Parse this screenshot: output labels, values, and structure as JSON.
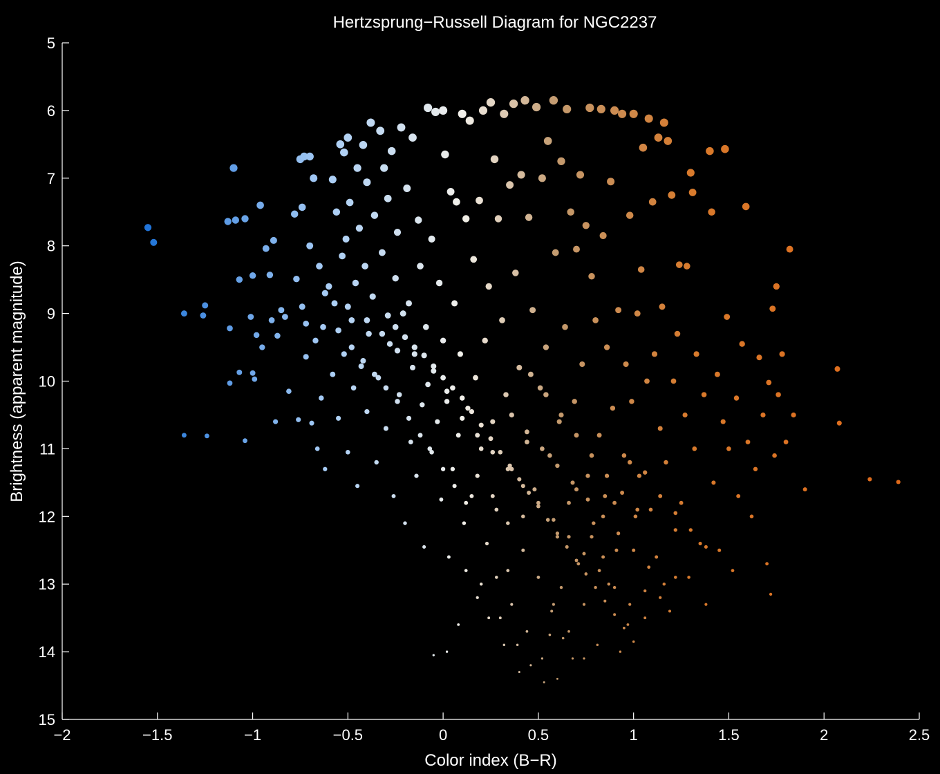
{
  "chart_data": {
    "type": "scatter",
    "title": "Hertzsprung−Russell Diagram for NGC2237",
    "xlabel": "Color index (B−R)",
    "ylabel": "Brightness (apparent magnitude)",
    "xlim": [
      -2,
      2.5
    ],
    "ylim": [
      5,
      15
    ],
    "y_inverted": true,
    "grid": false,
    "background": "#000000",
    "x_ticks": [
      {
        "value": -2,
        "label": "−2"
      },
      {
        "value": -1.5,
        "label": "−1.5"
      },
      {
        "value": -1,
        "label": "−1"
      },
      {
        "value": -0.5,
        "label": "−0.5"
      },
      {
        "value": 0,
        "label": "0"
      },
      {
        "value": 0.5,
        "label": "0.5"
      },
      {
        "value": 1,
        "label": "1"
      },
      {
        "value": 1.5,
        "label": "1.5"
      },
      {
        "value": 2,
        "label": "2"
      },
      {
        "value": 2.5,
        "label": "2.5"
      }
    ],
    "y_ticks": [
      {
        "value": 5,
        "label": "5"
      },
      {
        "value": 6,
        "label": "6"
      },
      {
        "value": 7,
        "label": "7"
      },
      {
        "value": 8,
        "label": "8"
      },
      {
        "value": 9,
        "label": "9"
      },
      {
        "value": 10,
        "label": "10"
      },
      {
        "value": 11,
        "label": "11"
      },
      {
        "value": 12,
        "label": "12"
      },
      {
        "value": 13,
        "label": "13"
      },
      {
        "value": 14,
        "label": "14"
      },
      {
        "value": 15,
        "label": "15"
      }
    ],
    "color_scale": [
      {
        "x": -1.6,
        "color": "#1a6fd6"
      },
      {
        "x": -0.6,
        "color": "#a9cdf5"
      },
      {
        "x": 0.1,
        "color": "#f2f0ea"
      },
      {
        "x": 0.6,
        "color": "#c39a6e"
      },
      {
        "x": 1.3,
        "color": "#d87a2c"
      },
      {
        "x": 2.4,
        "color": "#e06a1a"
      }
    ],
    "points": [
      [
        -1.55,
        7.73
      ],
      [
        -1.52,
        7.95
      ],
      [
        -1.36,
        9.0
      ],
      [
        -1.36,
        10.8
      ],
      [
        -1.26,
        9.03
      ],
      [
        -1.25,
        8.88
      ],
      [
        -1.24,
        10.81
      ],
      [
        -1.13,
        7.64
      ],
      [
        -1.12,
        9.22
      ],
      [
        -1.12,
        10.03
      ],
      [
        -1.1,
        6.85
      ],
      [
        -1.09,
        7.62
      ],
      [
        -1.07,
        8.5
      ],
      [
        -1.07,
        9.87
      ],
      [
        -1.04,
        7.6
      ],
      [
        -1.04,
        10.88
      ],
      [
        -1.01,
        9.05
      ],
      [
        -1.0,
        8.44
      ],
      [
        -1.0,
        9.88
      ],
      [
        -0.99,
        9.97
      ],
      [
        -0.98,
        9.32
      ],
      [
        -0.96,
        7.4
      ],
      [
        -0.95,
        9.5
      ],
      [
        -0.93,
        8.04
      ],
      [
        -0.91,
        8.43
      ],
      [
        -0.9,
        9.1
      ],
      [
        -0.89,
        7.92
      ],
      [
        -0.88,
        10.6
      ],
      [
        -0.87,
        9.33
      ],
      [
        -0.85,
        8.95
      ],
      [
        -0.83,
        9.05
      ],
      [
        -0.81,
        10.15
      ],
      [
        -0.78,
        7.53
      ],
      [
        -0.77,
        8.49
      ],
      [
        -0.76,
        10.57
      ],
      [
        -0.75,
        6.72
      ],
      [
        -0.74,
        7.43
      ],
      [
        -0.74,
        8.9
      ],
      [
        -0.73,
        6.68
      ],
      [
        -0.72,
        9.15
      ],
      [
        -0.72,
        9.64
      ],
      [
        -0.7,
        8.0
      ],
      [
        -0.7,
        6.68
      ],
      [
        -0.69,
        10.62
      ],
      [
        -0.68,
        7.0
      ],
      [
        -0.67,
        9.4
      ],
      [
        -0.66,
        11.0
      ],
      [
        -0.65,
        8.3
      ],
      [
        -0.64,
        10.25
      ],
      [
        -0.63,
        9.2
      ],
      [
        -0.62,
        11.3
      ],
      [
        -0.6,
        8.6
      ],
      [
        -0.58,
        7.02
      ],
      [
        -0.58,
        9.9
      ],
      [
        -0.57,
        8.85
      ],
      [
        -0.56,
        7.5
      ],
      [
        -0.55,
        10.55
      ],
      [
        -0.54,
        6.5
      ],
      [
        -0.53,
        8.15
      ],
      [
        -0.52,
        6.62
      ],
      [
        -0.52,
        9.6
      ],
      [
        -0.51,
        7.9
      ],
      [
        -0.5,
        6.4
      ],
      [
        -0.5,
        11.05
      ],
      [
        -0.49,
        7.36
      ],
      [
        -0.48,
        9.1
      ],
      [
        -0.47,
        10.1
      ],
      [
        -0.46,
        8.55
      ],
      [
        -0.45,
        6.85
      ],
      [
        -0.45,
        11.55
      ],
      [
        -0.44,
        7.74
      ],
      [
        -0.43,
        9.78
      ],
      [
        -0.42,
        6.51
      ],
      [
        -0.41,
        8.3
      ],
      [
        -0.4,
        7.06
      ],
      [
        -0.4,
        10.45
      ],
      [
        -0.39,
        9.3
      ],
      [
        -0.38,
        6.18
      ],
      [
        -0.37,
        8.75
      ],
      [
        -0.36,
        7.55
      ],
      [
        -0.35,
        11.2
      ],
      [
        -0.34,
        9.95
      ],
      [
        -0.33,
        6.3
      ],
      [
        -0.32,
        8.1
      ],
      [
        -0.31,
        6.85
      ],
      [
        -0.3,
        10.7
      ],
      [
        -0.29,
        7.3
      ],
      [
        -0.28,
        9.45
      ],
      [
        -0.27,
        6.6
      ],
      [
        -0.26,
        11.7
      ],
      [
        -0.25,
        8.48
      ],
      [
        -0.24,
        7.8
      ],
      [
        -0.23,
        10.2
      ],
      [
        -0.22,
        6.25
      ],
      [
        -0.21,
        9.0
      ],
      [
        -0.2,
        12.1
      ],
      [
        -0.19,
        7.15
      ],
      [
        -0.18,
        8.85
      ],
      [
        -0.17,
        10.9
      ],
      [
        -0.16,
        6.4
      ],
      [
        -0.15,
        9.6
      ],
      [
        -0.14,
        11.4
      ],
      [
        -0.13,
        7.62
      ],
      [
        -0.12,
        8.3
      ],
      [
        -0.11,
        10.35
      ],
      [
        -0.1,
        12.45
      ],
      [
        -0.09,
        9.2
      ],
      [
        -0.08,
        5.96
      ],
      [
        -0.07,
        11.0
      ],
      [
        -0.06,
        7.9
      ],
      [
        -0.05,
        9.85
      ],
      [
        -0.04,
        6.02
      ],
      [
        -0.03,
        10.6
      ],
      [
        -0.02,
        8.55
      ],
      [
        -0.01,
        11.75
      ],
      [
        0.0,
        6.0
      ],
      [
        0.0,
        9.4
      ],
      [
        0.01,
        6.65
      ],
      [
        0.02,
        10.15
      ],
      [
        0.03,
        12.6
      ],
      [
        0.04,
        7.2
      ],
      [
        0.05,
        11.3
      ],
      [
        0.06,
        8.85
      ],
      [
        0.07,
        7.35
      ],
      [
        0.08,
        10.8
      ],
      [
        0.09,
        9.6
      ],
      [
        0.1,
        6.05
      ],
      [
        0.11,
        12.1
      ],
      [
        0.12,
        7.6
      ],
      [
        0.13,
        10.4
      ],
      [
        0.14,
        6.15
      ],
      [
        0.15,
        11.7
      ],
      [
        0.16,
        8.2
      ],
      [
        0.17,
        9.95
      ],
      [
        0.18,
        13.2
      ],
      [
        0.19,
        7.33
      ],
      [
        0.2,
        11.0
      ],
      [
        0.21,
        6.0
      ],
      [
        0.22,
        9.4
      ],
      [
        0.23,
        12.4
      ],
      [
        0.24,
        8.6
      ],
      [
        0.25,
        5.88
      ],
      [
        0.26,
        10.6
      ],
      [
        0.27,
        6.72
      ],
      [
        0.28,
        11.9
      ],
      [
        0.29,
        7.6
      ],
      [
        0.3,
        13.5
      ],
      [
        0.31,
        9.1
      ],
      [
        0.32,
        6.05
      ],
      [
        0.33,
        10.2
      ],
      [
        0.34,
        12.8
      ],
      [
        0.35,
        7.1
      ],
      [
        0.36,
        11.3
      ],
      [
        0.37,
        5.9
      ],
      [
        0.38,
        8.4
      ],
      [
        0.39,
        13.9
      ],
      [
        0.4,
        9.8
      ],
      [
        0.41,
        6.95
      ],
      [
        0.42,
        12.0
      ],
      [
        0.43,
        5.85
      ],
      [
        0.44,
        10.9
      ],
      [
        0.45,
        7.58
      ],
      [
        0.46,
        14.2
      ],
      [
        0.47,
        8.95
      ],
      [
        0.48,
        11.6
      ],
      [
        0.49,
        5.95
      ],
      [
        0.5,
        12.9
      ],
      [
        0.51,
        10.1
      ],
      [
        0.52,
        7.0
      ],
      [
        0.53,
        14.45
      ],
      [
        0.54,
        9.5
      ],
      [
        0.55,
        6.45
      ],
      [
        0.56,
        11.1
      ],
      [
        0.57,
        13.4
      ],
      [
        0.58,
        5.85
      ],
      [
        0.59,
        8.1
      ],
      [
        0.6,
        12.3
      ],
      [
        0.61,
        10.6
      ],
      [
        0.62,
        6.75
      ],
      [
        0.63,
        13.8
      ],
      [
        0.64,
        9.2
      ],
      [
        0.65,
        5.98
      ],
      [
        0.66,
        11.8
      ],
      [
        0.67,
        7.5
      ],
      [
        0.68,
        14.1
      ],
      [
        0.69,
        10.3
      ],
      [
        0.7,
        8.05
      ],
      [
        0.71,
        12.7
      ],
      [
        0.72,
        6.95
      ],
      [
        0.73,
        9.75
      ],
      [
        0.74,
        13.3
      ],
      [
        0.75,
        7.7
      ],
      [
        0.76,
        11.4
      ],
      [
        0.77,
        5.96
      ],
      [
        0.78,
        8.45
      ],
      [
        0.79,
        12.1
      ],
      [
        0.8,
        9.1
      ],
      [
        0.81,
        13.9
      ],
      [
        0.82,
        10.8
      ],
      [
        0.83,
        5.98
      ],
      [
        0.84,
        7.85
      ],
      [
        0.85,
        11.7
      ],
      [
        0.86,
        9.5
      ],
      [
        0.87,
        13.0
      ],
      [
        0.88,
        7.05
      ],
      [
        0.89,
        10.4
      ],
      [
        0.9,
        6.0
      ],
      [
        0.91,
        12.5
      ],
      [
        0.92,
        8.95
      ],
      [
        0.93,
        14.0
      ],
      [
        0.94,
        6.05
      ],
      [
        0.95,
        11.1
      ],
      [
        0.96,
        9.75
      ],
      [
        0.97,
        13.6
      ],
      [
        0.98,
        7.55
      ],
      [
        0.99,
        10.3
      ],
      [
        1.0,
        6.05
      ],
      [
        1.01,
        12.0
      ],
      [
        1.02,
        9.0
      ],
      [
        1.03,
        11.4
      ],
      [
        1.04,
        8.35
      ],
      [
        1.05,
        6.55
      ],
      [
        1.06,
        13.1
      ],
      [
        1.07,
        10.0
      ],
      [
        1.08,
        6.12
      ],
      [
        1.09,
        11.9
      ],
      [
        1.1,
        7.35
      ],
      [
        1.11,
        9.6
      ],
      [
        1.12,
        12.6
      ],
      [
        1.13,
        6.4
      ],
      [
        1.14,
        10.7
      ],
      [
        1.15,
        8.9
      ],
      [
        1.16,
        6.18
      ],
      [
        1.17,
        11.2
      ],
      [
        1.18,
        6.45
      ],
      [
        1.19,
        13.4
      ],
      [
        1.2,
        7.25
      ],
      [
        1.21,
        10.0
      ],
      [
        1.22,
        12.2
      ],
      [
        1.23,
        9.3
      ],
      [
        1.24,
        8.28
      ],
      [
        1.25,
        11.8
      ],
      [
        1.27,
        10.5
      ],
      [
        1.28,
        8.3
      ],
      [
        1.29,
        12.9
      ],
      [
        1.3,
        6.92
      ],
      [
        1.31,
        7.21
      ],
      [
        1.32,
        11.0
      ],
      [
        1.33,
        9.6
      ],
      [
        1.35,
        12.4
      ],
      [
        1.37,
        10.2
      ],
      [
        1.38,
        13.3
      ],
      [
        1.4,
        6.6
      ],
      [
        1.41,
        7.5
      ],
      [
        1.42,
        11.5
      ],
      [
        1.44,
        9.9
      ],
      [
        1.45,
        12.5
      ],
      [
        1.47,
        10.6
      ],
      [
        1.48,
        6.57
      ],
      [
        1.49,
        9.05
      ],
      [
        1.5,
        11.0
      ],
      [
        1.52,
        12.8
      ],
      [
        1.54,
        10.25
      ],
      [
        1.55,
        11.7
      ],
      [
        1.57,
        9.45
      ],
      [
        1.59,
        7.42
      ],
      [
        1.6,
        10.9
      ],
      [
        1.62,
        12.0
      ],
      [
        1.64,
        11.3
      ],
      [
        1.66,
        9.65
      ],
      [
        1.68,
        10.5
      ],
      [
        1.7,
        12.7
      ],
      [
        1.71,
        10.02
      ],
      [
        1.72,
        13.15
      ],
      [
        1.73,
        8.93
      ],
      [
        1.74,
        11.1
      ],
      [
        1.75,
        8.6
      ],
      [
        1.76,
        10.2
      ],
      [
        1.78,
        9.6
      ],
      [
        1.8,
        10.9
      ],
      [
        1.82,
        8.05
      ],
      [
        1.84,
        10.5
      ],
      [
        1.9,
        11.6
      ],
      [
        2.07,
        9.82
      ],
      [
        2.08,
        10.62
      ],
      [
        2.24,
        11.45
      ],
      [
        2.39,
        11.49
      ],
      [
        -0.29,
        9.03
      ],
      [
        -0.25,
        9.2
      ],
      [
        -0.2,
        9.35
      ],
      [
        -0.15,
        9.5
      ],
      [
        -0.1,
        9.62
      ],
      [
        -0.05,
        9.78
      ],
      [
        0.0,
        9.95
      ],
      [
        0.05,
        10.1
      ],
      [
        0.1,
        10.25
      ],
      [
        0.15,
        10.45
      ],
      [
        0.2,
        10.65
      ],
      [
        0.25,
        10.85
      ],
      [
        0.3,
        11.05
      ],
      [
        0.35,
        11.25
      ],
      [
        0.4,
        11.45
      ],
      [
        0.45,
        11.65
      ],
      [
        0.5,
        11.85
      ],
      [
        0.55,
        12.05
      ],
      [
        0.6,
        12.25
      ],
      [
        0.65,
        12.45
      ],
      [
        0.7,
        12.65
      ],
      [
        0.75,
        12.85
      ],
      [
        0.8,
        13.05
      ],
      [
        0.85,
        13.25
      ],
      [
        0.9,
        13.45
      ],
      [
        0.95,
        13.65
      ],
      [
        1.0,
        13.85
      ],
      [
        0.18,
        11.4
      ],
      [
        0.26,
        11.7
      ],
      [
        0.34,
        12.1
      ],
      [
        0.42,
        12.5
      ],
      [
        0.5,
        12.9
      ],
      [
        0.58,
        13.3
      ],
      [
        0.66,
        13.7
      ],
      [
        0.74,
        14.1
      ],
      [
        0.28,
        12.9
      ],
      [
        0.36,
        13.3
      ],
      [
        0.44,
        13.7
      ],
      [
        0.52,
        14.1
      ],
      [
        0.6,
        14.4
      ],
      [
        0.4,
        14.3
      ],
      [
        0.32,
        13.9
      ],
      [
        0.24,
        13.5
      ],
      [
        0.2,
        13.0
      ],
      [
        0.12,
        12.8
      ],
      [
        0.08,
        13.6
      ],
      [
        0.02,
        14.0
      ],
      [
        -0.05,
        14.05
      ],
      [
        0.56,
        13.75
      ],
      [
        0.62,
        13.05
      ],
      [
        0.7,
        11.6
      ],
      [
        0.78,
        12.3
      ],
      [
        0.84,
        12.6
      ],
      [
        0.9,
        11.8
      ],
      [
        0.98,
        11.2
      ],
      [
        1.06,
        11.35
      ],
      [
        1.14,
        11.7
      ],
      [
        1.22,
        11.95
      ],
      [
        1.3,
        12.2
      ],
      [
        1.38,
        12.45
      ],
      [
        -0.55,
        9.25
      ],
      [
        -0.48,
        9.5
      ],
      [
        -0.42,
        9.7
      ],
      [
        -0.36,
        9.9
      ],
      [
        -0.3,
        10.1
      ],
      [
        -0.24,
        10.3
      ],
      [
        -0.18,
        10.55
      ],
      [
        -0.12,
        10.8
      ],
      [
        -0.06,
        11.05
      ],
      [
        0.0,
        11.3
      ],
      [
        0.06,
        11.55
      ],
      [
        0.12,
        11.8
      ],
      [
        -0.62,
        8.7
      ],
      [
        -0.5,
        8.9
      ],
      [
        -0.4,
        9.1
      ],
      [
        -0.32,
        9.3
      ],
      [
        -0.24,
        9.55
      ],
      [
        -0.16,
        9.8
      ],
      [
        -0.08,
        10.05
      ],
      [
        0.02,
        10.3
      ],
      [
        0.1,
        10.55
      ],
      [
        0.18,
        10.8
      ],
      [
        0.26,
        11.05
      ],
      [
        0.34,
        11.3
      ],
      [
        0.42,
        11.55
      ],
      [
        0.5,
        11.8
      ],
      [
        0.58,
        12.05
      ],
      [
        0.66,
        12.3
      ],
      [
        0.74,
        12.55
      ],
      [
        0.82,
        12.8
      ],
      [
        0.9,
        13.05
      ],
      [
        0.98,
        13.3
      ],
      [
        1.06,
        13.5
      ],
      [
        1.14,
        13.2
      ],
      [
        1.22,
        12.9
      ],
      [
        0.36,
        10.5
      ],
      [
        0.44,
        10.75
      ],
      [
        0.52,
        11.0
      ],
      [
        0.6,
        11.25
      ],
      [
        0.68,
        11.5
      ],
      [
        0.76,
        11.75
      ],
      [
        0.84,
        12.0
      ],
      [
        0.92,
        12.25
      ],
      [
        1.0,
        12.5
      ],
      [
        1.08,
        12.75
      ],
      [
        1.16,
        13.0
      ],
      [
        0.46,
        9.9
      ],
      [
        0.54,
        10.2
      ],
      [
        0.62,
        10.5
      ],
      [
        0.7,
        10.8
      ],
      [
        0.78,
        11.1
      ],
      [
        0.86,
        11.4
      ],
      [
        0.94,
        11.65
      ],
      [
        1.02,
        11.9
      ]
    ]
  }
}
